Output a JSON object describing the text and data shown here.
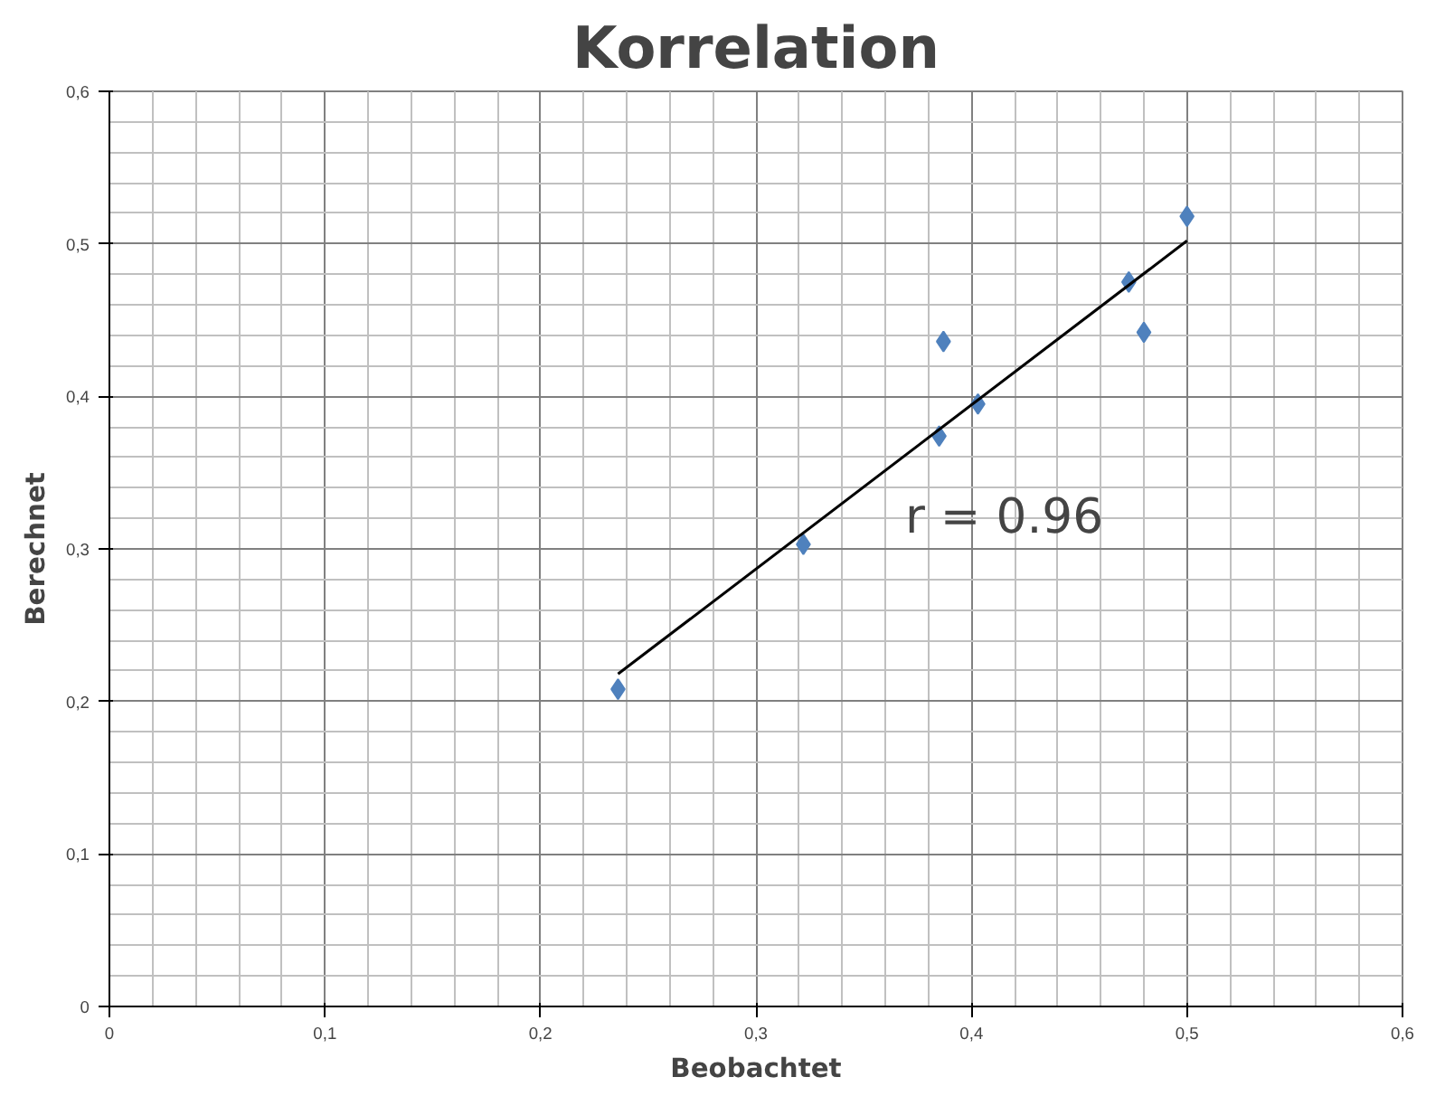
{
  "chart_data": {
    "type": "scatter",
    "title": "Korrelation",
    "xlabel": "Beobachtet",
    "ylabel": "Berechnet",
    "xlim": [
      0,
      0.6
    ],
    "ylim": [
      0,
      0.6
    ],
    "xticks": [
      {
        "value": 0,
        "label": "0"
      },
      {
        "value": 0.1,
        "label": "0,1"
      },
      {
        "value": 0.2,
        "label": "0,2"
      },
      {
        "value": 0.3,
        "label": "0,3"
      },
      {
        "value": 0.4,
        "label": "0,4"
      },
      {
        "value": 0.5,
        "label": "0,5"
      },
      {
        "value": 0.6,
        "label": "0,6"
      }
    ],
    "yticks": [
      {
        "value": 0,
        "label": "0"
      },
      {
        "value": 0.1,
        "label": "0,1"
      },
      {
        "value": 0.2,
        "label": "0,2"
      },
      {
        "value": 0.3,
        "label": "0,3"
      },
      {
        "value": 0.4,
        "label": "0,4"
      },
      {
        "value": 0.5,
        "label": "0,5"
      },
      {
        "value": 0.6,
        "label": "0,6"
      }
    ],
    "grid": true,
    "marker": "diamond",
    "series": [
      {
        "color": "#4f81bd",
        "x": [
          0.236,
          0.322,
          0.385,
          0.387,
          0.403,
          0.473,
          0.48,
          0.5
        ],
        "values": [
          0.208,
          0.303,
          0.374,
          0.436,
          0.395,
          0.475,
          0.442,
          0.518
        ]
      },
      {
        "type": "line",
        "marker": "none",
        "color": "#000000",
        "x": [
          0.236,
          0.5
        ],
        "values": [
          0.218,
          0.502
        ]
      }
    ],
    "annotations": [
      "r =  0.96"
    ]
  }
}
